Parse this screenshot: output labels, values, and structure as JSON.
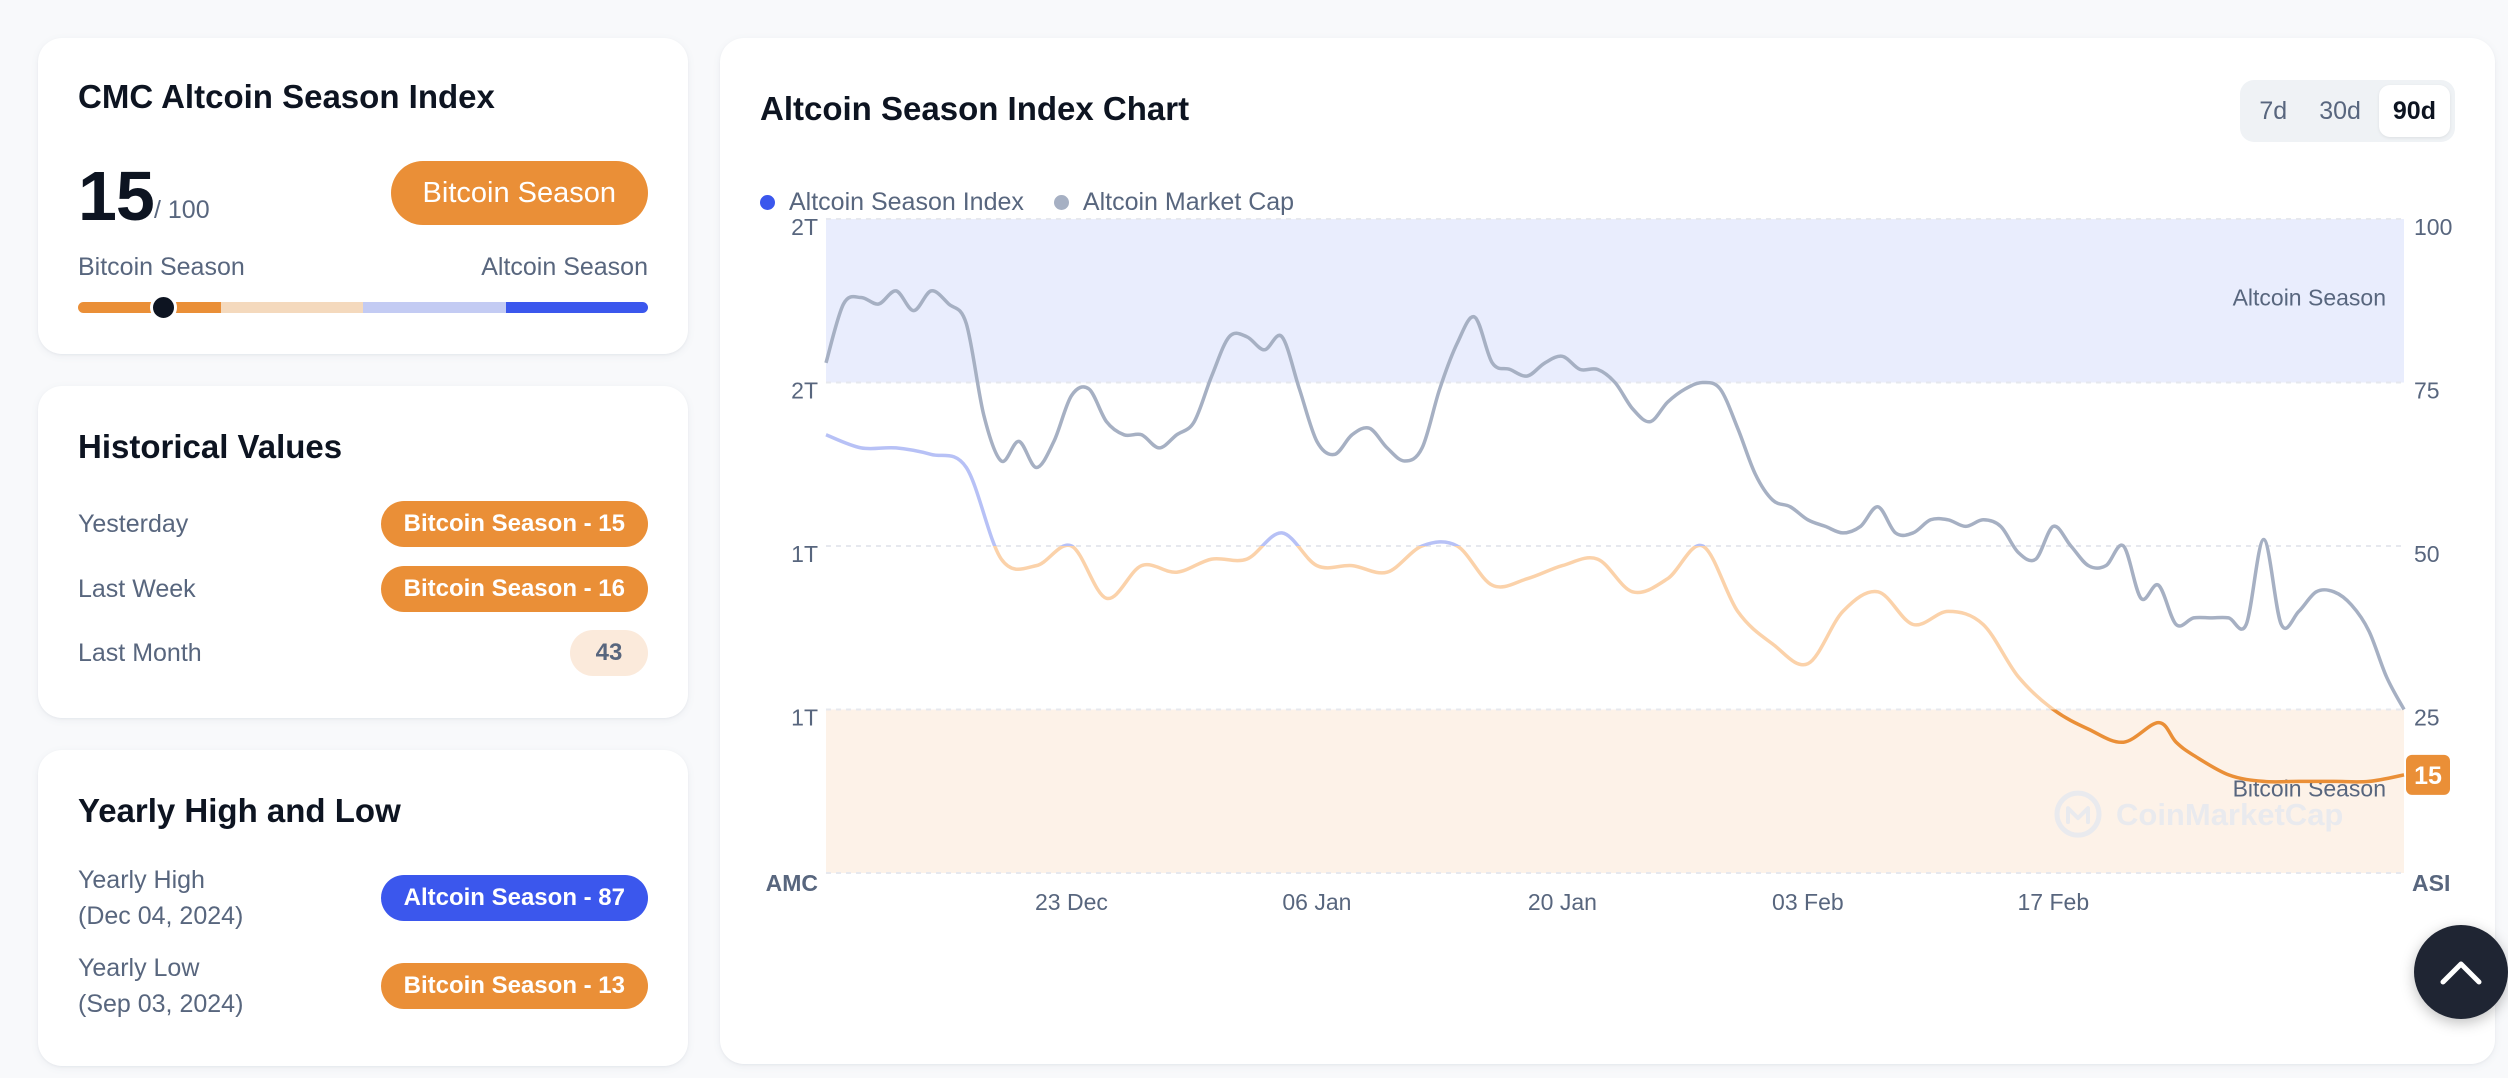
{
  "index_card": {
    "title": "CMC Altcoin Season Index",
    "value": "15",
    "out_of": "/ 100",
    "status": "Bitcoin Season",
    "scale_left": "Bitcoin Season",
    "scale_right": "Altcoin Season",
    "scale_level": 0.15,
    "scale_colors": [
      "#ea8f37",
      "#f4d9bd",
      "#c3cbf3",
      "#3b57ed"
    ]
  },
  "historical": {
    "title": "Historical Values",
    "rows": [
      {
        "label": "Yesterday",
        "value": "Bitcoin Season - 15",
        "kind": "btc"
      },
      {
        "label": "Last Week",
        "value": "Bitcoin Season - 16",
        "kind": "btc"
      },
      {
        "label": "Last Month",
        "value": "43",
        "kind": "neutral"
      }
    ]
  },
  "yearly": {
    "title": "Yearly High and Low",
    "high_label": "Yearly High",
    "high_date": "(Dec 04, 2024)",
    "high_value": "Altcoin Season - 87",
    "low_label": "Yearly Low",
    "low_date": "(Sep 03, 2024)",
    "low_value": "Bitcoin Season - 13"
  },
  "chart_card": {
    "title": "Altcoin Season Index Chart",
    "timeframes": [
      "7d",
      "30d",
      "90d"
    ],
    "active_timeframe": "90d",
    "watermark": "CoinMarketCap"
  },
  "colors": {
    "bitcoin": "#ea8f37",
    "bitcoin_light": "#fbd2aa",
    "altcoin": "#3b57ed",
    "altcoin_light": "#b7c1f6",
    "market_cap": "#a6b0c3",
    "alt_band": "#e9edfd",
    "btc_band": "#fdf2e8"
  },
  "chart_data": {
    "type": "line",
    "legend": [
      "Altcoin Season Index",
      "Altcoin Market Cap"
    ],
    "legend_colors": [
      "#3b57ed",
      "#a6b0c3"
    ],
    "legend_position": "top-left",
    "x_ticks": [
      "23 Dec",
      "06 Jan",
      "20 Jan",
      "03 Feb",
      "17 Feb"
    ],
    "x_tick_days": [
      14,
      28,
      42,
      56,
      70
    ],
    "x_range_days": [
      0,
      90
    ],
    "left_axis_title": "AMC",
    "right_axis_title": "ASI",
    "left_ticks": [
      "2T",
      "2T",
      "1T",
      "1T"
    ],
    "right_ticks": [
      "100",
      "75",
      "50",
      "25"
    ],
    "right_range": [
      0,
      100
    ],
    "left_tick_values": [
      100,
      75,
      50,
      25
    ],
    "bands": [
      {
        "label": "Altcoin Season",
        "from": 75,
        "to": 100
      },
      {
        "label": "Bitcoin Season",
        "from": 0,
        "to": 25
      }
    ],
    "current_value": "15",
    "grid": true,
    "series": [
      {
        "name": "Altcoin Season Index",
        "axis": "right",
        "x": [
          0,
          2,
          4,
          6,
          8,
          10,
          12,
          14,
          16,
          18,
          20,
          22,
          24,
          26,
          28,
          30,
          32,
          34,
          36,
          38,
          40,
          42,
          44,
          46,
          48,
          50,
          52,
          54,
          56,
          58,
          60,
          62,
          64,
          66,
          68,
          70,
          72,
          74,
          76,
          77,
          78,
          80,
          82,
          84,
          86,
          88,
          90
        ],
        "y": [
          67,
          65,
          65,
          64,
          62,
          48,
          47,
          50,
          42,
          47,
          46,
          48,
          48,
          52,
          47,
          47,
          46,
          50,
          50,
          44,
          45,
          47,
          48,
          43,
          45,
          50,
          40,
          35,
          32,
          40,
          43,
          38,
          40,
          38,
          30,
          25,
          22,
          20,
          23,
          20,
          18,
          15,
          14,
          14,
          14,
          14,
          15
        ]
      },
      {
        "name": "Altcoin Market Cap",
        "axis": "left",
        "x": [
          0,
          1,
          2,
          3,
          4,
          5,
          6,
          7,
          8,
          9,
          10,
          11,
          12,
          13,
          14,
          15,
          16,
          17,
          18,
          19,
          20,
          21,
          22,
          23,
          24,
          25,
          26,
          27,
          28,
          29,
          30,
          31,
          32,
          33,
          34,
          35,
          36,
          37,
          38,
          39,
          40,
          41,
          42,
          43,
          44,
          45,
          46,
          47,
          48,
          49,
          50,
          51,
          52,
          53,
          54,
          55,
          56,
          57,
          58,
          59,
          60,
          61,
          62,
          63,
          64,
          65,
          66,
          67,
          68,
          69,
          70,
          71,
          72,
          73,
          74,
          75,
          76,
          77,
          78,
          79,
          80,
          81,
          82,
          83,
          84,
          85,
          86,
          87,
          88,
          89,
          90
        ],
        "y": [
          78,
          87,
          88,
          87,
          89,
          86,
          89,
          87,
          84,
          70,
          63,
          66,
          62,
          66,
          73,
          74,
          69,
          67,
          67,
          65,
          67,
          69,
          76,
          82,
          82,
          80,
          82,
          74,
          66,
          64,
          67,
          68,
          65,
          63,
          65,
          74,
          81,
          85,
          78,
          77,
          76,
          78,
          79,
          77,
          77,
          75,
          71,
          69,
          72,
          74,
          75,
          74,
          68,
          61,
          57,
          56,
          54,
          53,
          52,
          53,
          56,
          52,
          52,
          54,
          54,
          53,
          54,
          53,
          49,
          48,
          53,
          50,
          47,
          47,
          50,
          42,
          44,
          38,
          39,
          39,
          39,
          38,
          51,
          38,
          40,
          43,
          43,
          41,
          37,
          30,
          25
        ]
      }
    ]
  }
}
